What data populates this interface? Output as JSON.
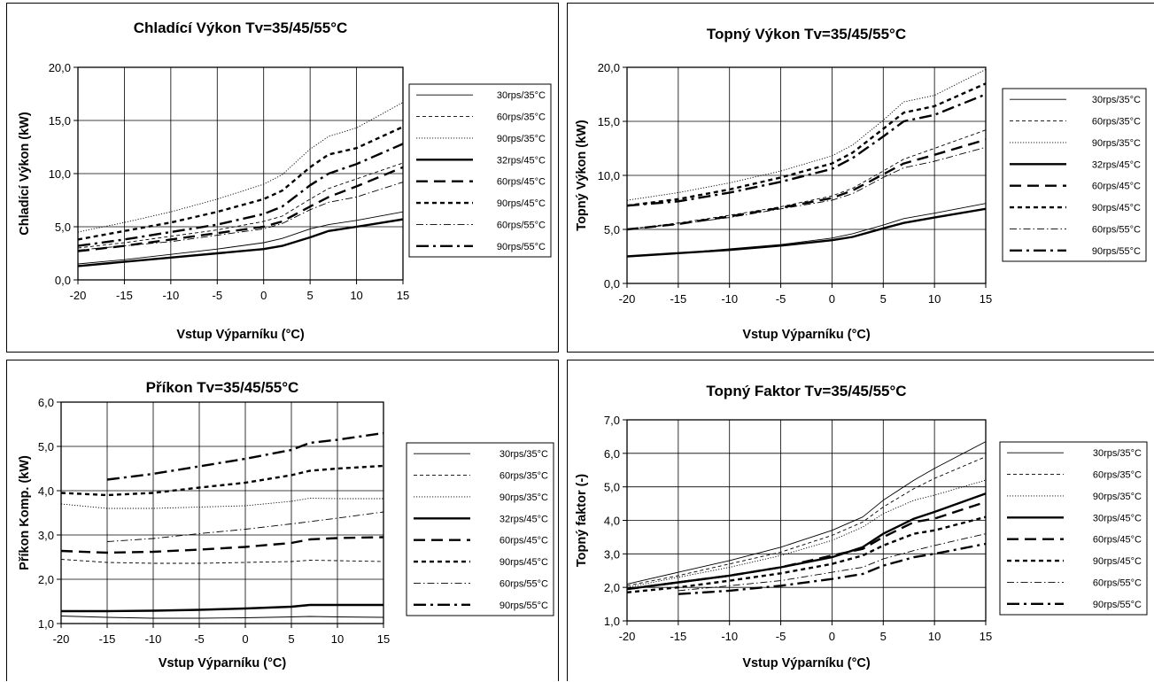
{
  "chart_data": [
    {
      "type": "line",
      "title": "Chladící Výkon Tv=35/45/55°C",
      "xlabel": "Vstup Výparníku (°C)",
      "ylabel": "Chladící Výkon (kW)",
      "xlim": [
        -20,
        15
      ],
      "ylim": [
        0,
        20
      ],
      "xticks": [
        -20,
        -15,
        -10,
        -5,
        0,
        5,
        10,
        15
      ],
      "yticks": [
        0,
        5,
        10,
        15,
        20
      ],
      "ytick_labels": [
        "0,0",
        "5,0",
        "10,0",
        "15,0",
        "20,0"
      ],
      "grid": true,
      "legend_position": "right",
      "series": [
        {
          "name": "30rps/35°C",
          "style": "thin-solid",
          "x": [
            -20,
            -15,
            -10,
            -5,
            0,
            2,
            5,
            7,
            10,
            15
          ],
          "y": [
            1.5,
            1.9,
            2.4,
            2.9,
            3.5,
            3.9,
            4.8,
            5.2,
            5.6,
            6.4
          ]
        },
        {
          "name": "60rps/35°C",
          "style": "thin-dash",
          "x": [
            -20,
            -15,
            -10,
            -5,
            0,
            2,
            5,
            7,
            10,
            15
          ],
          "y": [
            3.0,
            3.5,
            4.1,
            4.7,
            5.5,
            6.0,
            7.6,
            8.6,
            9.5,
            11.0
          ]
        },
        {
          "name": "90rps/35°C",
          "style": "thin-dot",
          "x": [
            -20,
            -15,
            -10,
            -5,
            0,
            2,
            5,
            7,
            10,
            15
          ],
          "y": [
            4.5,
            5.4,
            6.4,
            7.6,
            9.0,
            9.9,
            12.3,
            13.5,
            14.3,
            16.7
          ]
        },
        {
          "name": "32rps/45°C",
          "style": "thick-solid",
          "x": [
            -20,
            -15,
            -10,
            -5,
            0,
            2,
            5,
            7,
            10,
            15
          ],
          "y": [
            1.3,
            1.7,
            2.1,
            2.5,
            2.9,
            3.2,
            4.0,
            4.6,
            5.0,
            5.7
          ]
        },
        {
          "name": "60rps/45°C",
          "style": "thick-dash",
          "x": [
            -20,
            -15,
            -10,
            -5,
            0,
            2,
            5,
            7,
            10,
            15
          ],
          "y": [
            2.7,
            3.2,
            3.8,
            4.4,
            5.0,
            5.5,
            6.9,
            7.8,
            8.8,
            10.6
          ]
        },
        {
          "name": "90rps/45°C",
          "style": "thick-dot",
          "x": [
            -20,
            -15,
            -10,
            -5,
            0,
            2,
            5,
            7,
            10,
            15
          ],
          "y": [
            3.8,
            4.6,
            5.4,
            6.4,
            7.6,
            8.4,
            10.6,
            11.8,
            12.4,
            14.4
          ]
        },
        {
          "name": "60rps/55°C",
          "style": "thin-dashdot",
          "x": [
            -20,
            -15,
            -10,
            -5,
            0,
            2,
            5,
            7,
            10,
            15
          ],
          "y": [
            2.8,
            3.2,
            3.6,
            4.2,
            4.8,
            5.3,
            6.6,
            7.3,
            7.8,
            9.2
          ]
        },
        {
          "name": "90rps/55°C",
          "style": "thick-dashdot",
          "x": [
            -20,
            -15,
            -10,
            -5,
            0,
            2,
            5,
            7,
            10,
            15
          ],
          "y": [
            3.2,
            3.8,
            4.5,
            5.2,
            6.2,
            6.9,
            8.9,
            10.0,
            10.9,
            12.8
          ]
        }
      ]
    },
    {
      "type": "line",
      "title": "Topný Výkon Tv=35/45/55°C",
      "xlabel": "Vstup Výparníku (°C)",
      "ylabel": "Topný Výkon (kW)",
      "xlim": [
        -20,
        15
      ],
      "ylim": [
        0,
        20
      ],
      "xticks": [
        -20,
        -15,
        -10,
        -5,
        0,
        5,
        10,
        15
      ],
      "yticks": [
        0,
        5,
        10,
        15,
        20
      ],
      "ytick_labels": [
        "0,0",
        "5,0",
        "10,0",
        "15,0",
        "20,0"
      ],
      "grid": true,
      "legend_position": "right",
      "series": [
        {
          "name": "30rps/35°C",
          "style": "thin-solid",
          "x": [
            -20,
            -15,
            -10,
            -5,
            0,
            2,
            5,
            7,
            10,
            15
          ],
          "y": [
            2.5,
            2.8,
            3.2,
            3.6,
            4.2,
            4.6,
            5.4,
            6.0,
            6.5,
            7.4
          ]
        },
        {
          "name": "60rps/35°C",
          "style": "thin-dash",
          "x": [
            -20,
            -15,
            -10,
            -5,
            0,
            2,
            5,
            7,
            10,
            15
          ],
          "y": [
            5.0,
            5.6,
            6.3,
            7.1,
            8.1,
            8.8,
            10.4,
            11.5,
            12.5,
            14.2
          ]
        },
        {
          "name": "90rps/35°C",
          "style": "thin-dot",
          "x": [
            -20,
            -15,
            -10,
            -5,
            0,
            2,
            5,
            7,
            10,
            15
          ],
          "y": [
            7.7,
            8.4,
            9.3,
            10.4,
            11.8,
            12.8,
            15.1,
            16.8,
            17.4,
            19.8
          ]
        },
        {
          "name": "32rps/45°C",
          "style": "thick-solid",
          "x": [
            -20,
            -15,
            -10,
            -5,
            0,
            2,
            5,
            7,
            10,
            15
          ],
          "y": [
            2.5,
            2.8,
            3.1,
            3.5,
            4.0,
            4.3,
            5.1,
            5.6,
            6.1,
            6.9
          ]
        },
        {
          "name": "60rps/45°C",
          "style": "thick-dash",
          "x": [
            -20,
            -15,
            -10,
            -5,
            0,
            2,
            5,
            7,
            10,
            15
          ],
          "y": [
            5.0,
            5.5,
            6.2,
            7.0,
            7.9,
            8.6,
            10.1,
            11.1,
            11.9,
            13.3
          ]
        },
        {
          "name": "90rps/45°C",
          "style": "thick-dot",
          "x": [
            -20,
            -15,
            -10,
            -5,
            0,
            2,
            5,
            7,
            10,
            15
          ],
          "y": [
            7.2,
            7.8,
            8.7,
            9.8,
            11.1,
            12.1,
            14.3,
            15.8,
            16.4,
            18.5
          ]
        },
        {
          "name": "60rps/55°C",
          "style": "thin-dashdot",
          "x": [
            -20,
            -15,
            -10,
            -5,
            0,
            2,
            5,
            7,
            10,
            15
          ],
          "y": [
            5.0,
            5.5,
            6.1,
            6.9,
            7.7,
            8.3,
            9.8,
            10.7,
            11.3,
            12.6
          ]
        },
        {
          "name": "90rps/55°C",
          "style": "thick-dashdot",
          "x": [
            -20,
            -15,
            -10,
            -5,
            0,
            2,
            5,
            7,
            10,
            15
          ],
          "y": [
            7.2,
            7.6,
            8.4,
            9.4,
            10.6,
            11.6,
            13.6,
            15.0,
            15.6,
            17.5
          ]
        }
      ]
    },
    {
      "type": "line",
      "title": "Příkon Tv=35/45/55°C",
      "xlabel": "Vstup Výparníku (°C)",
      "ylabel": "Příkon Komp. (kW)",
      "xlim": [
        -20,
        15
      ],
      "ylim": [
        1,
        6
      ],
      "xticks": [
        -20,
        -15,
        -10,
        -5,
        0,
        5,
        10,
        15
      ],
      "yticks": [
        1,
        2,
        3,
        4,
        5,
        6
      ],
      "ytick_labels": [
        "1,0",
        "2,0",
        "3,0",
        "4,0",
        "5,0",
        "6,0"
      ],
      "grid": true,
      "legend_position": "right",
      "series": [
        {
          "name": "30rps/35°C",
          "style": "thin-solid",
          "x": [
            -20,
            -15,
            -10,
            -5,
            0,
            5,
            7,
            10,
            15
          ],
          "y": [
            1.17,
            1.14,
            1.12,
            1.12,
            1.13,
            1.15,
            1.16,
            1.15,
            1.14
          ]
        },
        {
          "name": "60rps/35°C",
          "style": "thin-dash",
          "x": [
            -20,
            -15,
            -10,
            -5,
            0,
            5,
            7,
            10,
            15
          ],
          "y": [
            2.45,
            2.38,
            2.36,
            2.36,
            2.38,
            2.4,
            2.43,
            2.42,
            2.4
          ]
        },
        {
          "name": "90rps/35°C",
          "style": "thin-dot",
          "x": [
            -20,
            -15,
            -10,
            -5,
            0,
            5,
            7,
            10,
            15
          ],
          "y": [
            3.7,
            3.6,
            3.6,
            3.63,
            3.66,
            3.76,
            3.83,
            3.82,
            3.82
          ]
        },
        {
          "name": "32rps/45°C",
          "style": "thick-solid",
          "x": [
            -20,
            -15,
            -10,
            -5,
            0,
            5,
            7,
            10,
            15
          ],
          "y": [
            1.28,
            1.28,
            1.29,
            1.31,
            1.34,
            1.38,
            1.42,
            1.42,
            1.42
          ]
        },
        {
          "name": "60rps/45°C",
          "style": "thick-dash",
          "x": [
            -20,
            -15,
            -10,
            -5,
            0,
            5,
            7,
            10,
            15
          ],
          "y": [
            2.64,
            2.6,
            2.62,
            2.67,
            2.73,
            2.82,
            2.9,
            2.93,
            2.95
          ]
        },
        {
          "name": "90rps/45°C",
          "style": "thick-dot",
          "x": [
            -20,
            -15,
            -10,
            -5,
            0,
            5,
            7,
            10,
            15
          ],
          "y": [
            3.95,
            3.9,
            3.95,
            4.07,
            4.18,
            4.35,
            4.45,
            4.5,
            4.56
          ]
        },
        {
          "name": "60rps/55°C",
          "style": "thin-dashdot",
          "x": [
            -15,
            -10,
            -5,
            0,
            5,
            10,
            15
          ],
          "y": [
            2.85,
            2.92,
            3.03,
            3.13,
            3.25,
            3.38,
            3.52
          ]
        },
        {
          "name": "90rps/55°C",
          "style": "thick-dashdot",
          "x": [
            -15,
            -10,
            -5,
            0,
            5,
            7,
            10,
            15
          ],
          "y": [
            4.25,
            4.38,
            4.55,
            4.72,
            4.92,
            5.08,
            5.15,
            5.3
          ]
        }
      ]
    },
    {
      "type": "line",
      "title": "Topný Faktor Tv=35/45/55°C",
      "xlabel": "Vstup Výparníku (°C)",
      "ylabel": "Topný faktor (-)",
      "xlim": [
        -20,
        15
      ],
      "ylim": [
        1,
        7
      ],
      "xticks": [
        -20,
        -15,
        -10,
        -5,
        0,
        5,
        10,
        15
      ],
      "yticks": [
        1,
        2,
        3,
        4,
        5,
        6,
        7
      ],
      "ytick_labels": [
        "1,0",
        "2,0",
        "3,0",
        "4,0",
        "5,0",
        "6,0",
        "7,0"
      ],
      "grid": true,
      "legend_position": "right",
      "series": [
        {
          "name": "30rps/35°C",
          "style": "thin-solid",
          "x": [
            -20,
            -15,
            -10,
            -5,
            0,
            3,
            5,
            8,
            10,
            15
          ],
          "y": [
            2.1,
            2.45,
            2.8,
            3.2,
            3.7,
            4.1,
            4.6,
            5.2,
            5.55,
            6.35
          ]
        },
        {
          "name": "60rps/35°C",
          "style": "thin-dash",
          "x": [
            -20,
            -15,
            -10,
            -5,
            0,
            3,
            5,
            8,
            10,
            15
          ],
          "y": [
            2.05,
            2.35,
            2.7,
            3.05,
            3.55,
            3.95,
            4.4,
            4.95,
            5.25,
            5.9
          ]
        },
        {
          "name": "90rps/35°C",
          "style": "thin-dot",
          "x": [
            -20,
            -15,
            -10,
            -5,
            0,
            3,
            5,
            8,
            10,
            15
          ],
          "y": [
            2.0,
            2.3,
            2.6,
            2.95,
            3.4,
            3.8,
            4.2,
            4.6,
            4.75,
            5.2
          ]
        },
        {
          "name": "30rps/45°C",
          "style": "thick-solid",
          "x": [
            -20,
            -15,
            -10,
            -5,
            0,
            3,
            5,
            8,
            10,
            15
          ],
          "y": [
            1.95,
            2.15,
            2.35,
            2.6,
            2.9,
            3.2,
            3.6,
            4.05,
            4.25,
            4.8
          ]
        },
        {
          "name": "60rps/45°C",
          "style": "thick-dash",
          "x": [
            -20,
            -15,
            -10,
            -5,
            0,
            3,
            5,
            8,
            10,
            15
          ],
          "y": [
            1.95,
            2.15,
            2.35,
            2.6,
            2.95,
            3.15,
            3.5,
            3.95,
            4.05,
            4.55
          ]
        },
        {
          "name": "90rps/45°C",
          "style": "thick-dot",
          "x": [
            -20,
            -15,
            -10,
            -5,
            0,
            3,
            5,
            8,
            10,
            15
          ],
          "y": [
            1.85,
            2.0,
            2.2,
            2.42,
            2.7,
            2.95,
            3.25,
            3.6,
            3.7,
            4.1
          ]
        },
        {
          "name": "60rps/55°C",
          "style": "thin-dashdot",
          "x": [
            -15,
            -10,
            -5,
            0,
            3,
            5,
            8,
            10,
            15
          ],
          "y": [
            1.9,
            2.05,
            2.2,
            2.45,
            2.6,
            2.85,
            3.1,
            3.25,
            3.6
          ]
        },
        {
          "name": "90rps/55°C",
          "style": "thick-dashdot",
          "x": [
            -15,
            -10,
            -5,
            0,
            3,
            5,
            8,
            10,
            15
          ],
          "y": [
            1.8,
            1.9,
            2.05,
            2.25,
            2.4,
            2.65,
            2.9,
            3.0,
            3.3
          ]
        }
      ]
    }
  ]
}
